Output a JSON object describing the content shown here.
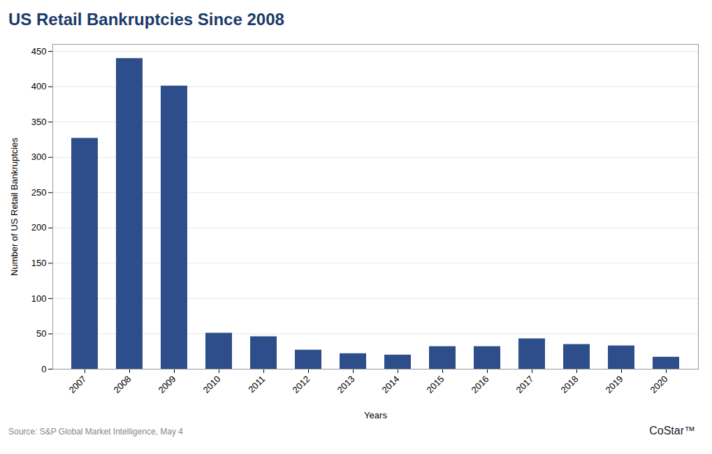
{
  "chart_data": {
    "type": "bar",
    "title": "US Retail Bankruptcies Since 2008",
    "xlabel": "Years",
    "ylabel": "Number of US Retail Bankruptcies",
    "categories": [
      "2007",
      "2008",
      "2009",
      "2010",
      "2011",
      "2012",
      "2013",
      "2014",
      "2015",
      "2016",
      "2017",
      "2018",
      "2019",
      "2020"
    ],
    "values": [
      327,
      440,
      401,
      51,
      46,
      27,
      22,
      20,
      32,
      32,
      43,
      35,
      33,
      17
    ],
    "color": "#2d4e8a",
    "ylim": [
      0,
      460
    ],
    "yticks": [
      0,
      50,
      100,
      150,
      200,
      250,
      300,
      350,
      400,
      450
    ],
    "grid": true,
    "annotations": [
      "Source: S&P Global Market Intelligence, May 4",
      "CoStar™"
    ]
  }
}
